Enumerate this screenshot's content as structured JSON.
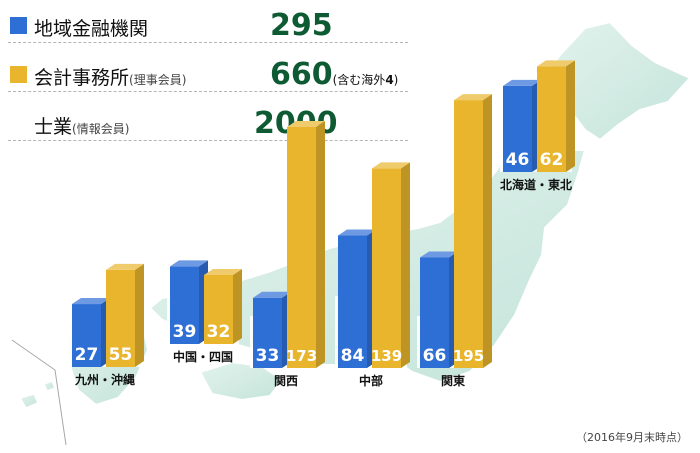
{
  "legend": [
    {
      "label": "地域金融機関",
      "sub": "",
      "count": "295",
      "note_pre": "",
      "note_num": "",
      "note_post": "",
      "color": "#2e6fd6"
    },
    {
      "label": "会計事務所",
      "sub": "(理事会員)",
      "count": "660",
      "note_pre": "(含む海外",
      "note_num": "4",
      "note_post": ")",
      "color": "#e8b52c"
    },
    {
      "label": "士業",
      "sub": "(情報会員)",
      "count": "2000",
      "note_pre": "",
      "note_num": "",
      "note_post": "",
      "color": ""
    }
  ],
  "footnote": "（2016年9月末時点）",
  "colors": {
    "blue": "#2e6fd6",
    "gold": "#e8b52c",
    "map": "#d3ece4",
    "map_edge": "#ffffff"
  },
  "chart_data": {
    "type": "bar",
    "categories": [
      "九州・沖縄",
      "中国・四国",
      "関西",
      "中部",
      "関東",
      "北海道・東北"
    ],
    "series": [
      {
        "name": "地域金融機関",
        "values": [
          27,
          39,
          33,
          84,
          66,
          46
        ]
      },
      {
        "name": "会計事務所",
        "values": [
          55,
          32,
          173,
          139,
          195,
          62
        ]
      }
    ]
  }
}
